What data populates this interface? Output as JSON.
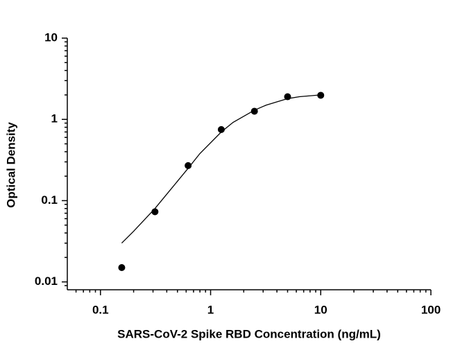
{
  "chart_data": {
    "type": "scatter",
    "x_label": "SARS-CoV-2 Spike RBD Concentration (ng/mL)",
    "y_label": "Optical Density",
    "x": [
      0.156,
      0.3125,
      0.625,
      1.25,
      2.5,
      5,
      10
    ],
    "values": [
      0.015,
      0.073,
      0.27,
      0.75,
      1.26,
      1.9,
      1.98
    ],
    "color": "#000000",
    "curve": {
      "x": [
        0.156,
        0.2,
        0.3125,
        0.4,
        0.625,
        0.8,
        1.25,
        1.6,
        2.5,
        3.2,
        5,
        6.4,
        10
      ],
      "values": [
        0.03,
        0.042,
        0.08,
        0.12,
        0.25,
        0.38,
        0.7,
        0.92,
        1.3,
        1.5,
        1.8,
        1.9,
        2.0
      ]
    },
    "xlim": [
      0.05,
      100
    ],
    "ylim": [
      0.008,
      10
    ],
    "xticks": [
      0.1,
      1,
      10,
      100
    ],
    "yticks": [
      0.01,
      0.1,
      1,
      10
    ],
    "xlog": true,
    "ylog": true,
    "minor_ticks": true
  }
}
